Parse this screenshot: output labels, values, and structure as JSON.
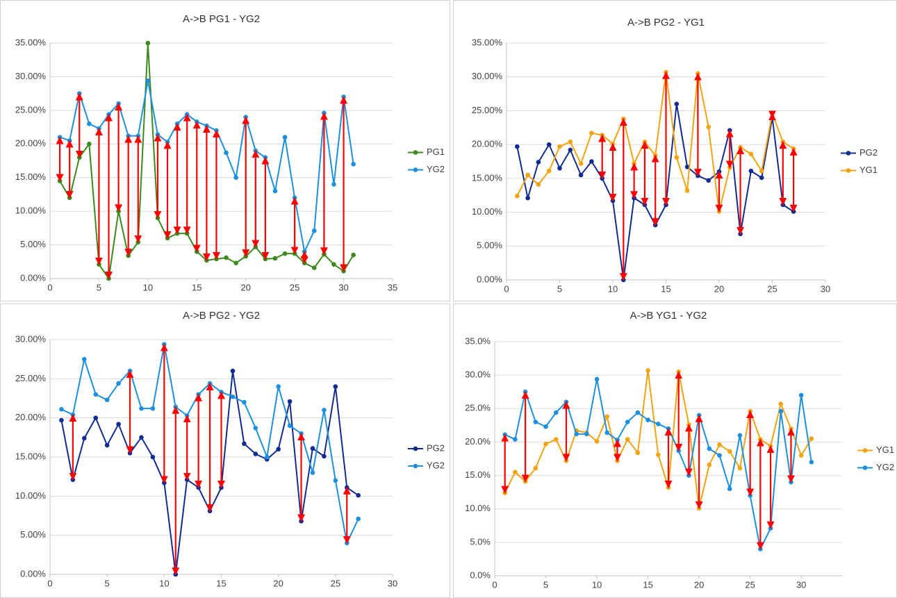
{
  "chart_data": [
    {
      "type": "line",
      "title": "A->B PG1 - YG2",
      "x": [
        1,
        2,
        3,
        4,
        5,
        6,
        7,
        8,
        9,
        10,
        11,
        12,
        13,
        14,
        15,
        16,
        17,
        18,
        19,
        20,
        21,
        22,
        23,
        24,
        25,
        26,
        27,
        28,
        29,
        30,
        31
      ],
      "series": [
        {
          "name": "PG1",
          "color": "#3a8a1c",
          "values": [
            14.5,
            12,
            18,
            20,
            2.1,
            0,
            10,
            3.4,
            5.4,
            35,
            9,
            6,
            6.7,
            6.7,
            4,
            2.7,
            2.9,
            3.1,
            2.3,
            3.3,
            4.7,
            2.9,
            3,
            3.7,
            3.7,
            2.3,
            1.6,
            3.6,
            2.1,
            1.1,
            3.5
          ]
        },
        {
          "name": "YG2",
          "color": "#1b8fe0",
          "values": [
            21,
            20.5,
            27.5,
            23,
            22.3,
            24.4,
            26,
            21.2,
            21.2,
            29.4,
            21.4,
            20.3,
            23,
            24.4,
            23.3,
            22.7,
            22,
            18.7,
            15,
            24,
            19,
            18,
            13,
            21,
            12,
            4,
            7.1,
            24.6,
            14,
            27,
            17
          ]
        }
      ],
      "arrows": {
        "color": "#ff0000",
        "x": [
          1,
          2,
          3,
          5,
          6,
          7,
          8,
          9,
          11,
          12,
          13,
          14,
          15,
          16,
          17,
          20,
          21,
          22,
          25,
          26,
          28,
          30
        ]
      },
      "xlim": [
        0,
        35
      ],
      "xticks": [
        0,
        5,
        10,
        15,
        20,
        25,
        30,
        35
      ],
      "ylim": [
        0,
        35
      ],
      "yticks": [
        {
          "value": 0,
          "label": "0.00%"
        },
        {
          "value": 5,
          "label": "5.00%"
        },
        {
          "value": 10,
          "label": "10.00%"
        },
        {
          "value": 15,
          "label": "15.00%"
        },
        {
          "value": 20,
          "label": "20.00%"
        },
        {
          "value": 25,
          "label": "25.00%"
        },
        {
          "value": 30,
          "label": "30.00%"
        },
        {
          "value": 35,
          "label": "35.00%"
        }
      ],
      "grid": true,
      "legend": "right"
    },
    {
      "type": "line",
      "title": "A->B PG2 - YG1",
      "x": [
        1,
        2,
        3,
        4,
        5,
        6,
        7,
        8,
        9,
        10,
        11,
        12,
        13,
        14,
        15,
        16,
        17,
        18,
        19,
        20,
        21,
        22,
        23,
        24,
        25,
        26,
        27
      ],
      "series": [
        {
          "name": "PG2",
          "color": "#102b94",
          "values": [
            19.7,
            12.1,
            17.4,
            20,
            16.5,
            19.2,
            15.5,
            17.5,
            15,
            11.7,
            0,
            12.1,
            11.1,
            8.1,
            11.1,
            26,
            16.7,
            15.4,
            14.7,
            16,
            22.1,
            6.8,
            16.1,
            15.1,
            24,
            11.1,
            10.1
          ]
        },
        {
          "name": "YG1",
          "color": "#f5a20f",
          "values": [
            12.4,
            15.5,
            14.1,
            16.1,
            19.7,
            20.4,
            17.2,
            21.7,
            21.4,
            20.1,
            23.8,
            17.2,
            20.4,
            18.4,
            30.7,
            18.1,
            13.2,
            30.5,
            22.6,
            10.1,
            16.6,
            19.6,
            18.6,
            16.1,
            24.6,
            20.4,
            19.4
          ]
        }
      ],
      "arrows": {
        "color": "#ff0000",
        "x": [
          9,
          10,
          11,
          12,
          13,
          14,
          15,
          18,
          20,
          21,
          22,
          25,
          26,
          27
        ]
      },
      "xlim": [
        0,
        30
      ],
      "xticks": [
        0,
        5,
        10,
        15,
        20,
        25,
        30
      ],
      "ylim": [
        0,
        35
      ],
      "yticks": [
        {
          "value": 0,
          "label": "0.00%"
        },
        {
          "value": 5,
          "label": "5.00%"
        },
        {
          "value": 10,
          "label": "10.00%"
        },
        {
          "value": 15,
          "label": "15.00%"
        },
        {
          "value": 20,
          "label": "20.00%"
        },
        {
          "value": 25,
          "label": "25.00%"
        },
        {
          "value": 30,
          "label": "30.00%"
        },
        {
          "value": 35,
          "label": "35.00%"
        }
      ],
      "grid": true,
      "legend": "right"
    },
    {
      "type": "line",
      "title": "A->B PG2 - YG2",
      "x": [
        1,
        2,
        3,
        4,
        5,
        6,
        7,
        8,
        9,
        10,
        11,
        12,
        13,
        14,
        15,
        16,
        17,
        18,
        19,
        20,
        21,
        22,
        23,
        24,
        25,
        26,
        27
      ],
      "series": [
        {
          "name": "PG2",
          "color": "#102b94",
          "values": [
            19.7,
            12.1,
            17.4,
            20,
            16.5,
            19.2,
            15.5,
            17.5,
            15,
            11.7,
            0,
            12.1,
            11.1,
            8.1,
            11.1,
            26,
            16.7,
            15.4,
            14.7,
            16,
            22.1,
            6.8,
            16.1,
            15.1,
            24,
            11.1,
            10.1
          ]
        },
        {
          "name": "YG2",
          "color": "#1b8fe0",
          "values": [
            21.1,
            20.4,
            27.5,
            23,
            22.3,
            24.4,
            26,
            21.2,
            21.2,
            29.4,
            21.4,
            20.3,
            23,
            24.4,
            23.3,
            22.7,
            22,
            18.7,
            15,
            24,
            19,
            18,
            13,
            21,
            12,
            4,
            7.1
          ]
        }
      ],
      "arrows": {
        "color": "#ff0000",
        "x": [
          2,
          7,
          10,
          11,
          12,
          13,
          14,
          15,
          22,
          26
        ]
      },
      "xlim": [
        0,
        30
      ],
      "xticks": [
        0,
        5,
        10,
        15,
        20,
        25,
        30
      ],
      "ylim": [
        0,
        30
      ],
      "yticks": [
        {
          "value": 0,
          "label": "0.00%"
        },
        {
          "value": 5,
          "label": "5.00%"
        },
        {
          "value": 10,
          "label": "10.00%"
        },
        {
          "value": 15,
          "label": "15.00%"
        },
        {
          "value": 20,
          "label": "20.00%"
        },
        {
          "value": 25,
          "label": "25.00%"
        },
        {
          "value": 30,
          "label": "30.00%"
        }
      ],
      "grid": true,
      "legend": "right"
    },
    {
      "type": "line",
      "title": "A->B YG1 - YG2",
      "x": [
        1,
        2,
        3,
        4,
        5,
        6,
        7,
        8,
        9,
        10,
        11,
        12,
        13,
        14,
        15,
        16,
        17,
        18,
        19,
        20,
        21,
        22,
        23,
        24,
        25,
        26,
        27,
        28,
        29,
        30,
        31
      ],
      "series": [
        {
          "name": "YG1",
          "color": "#f5a20f",
          "values": [
            12.4,
            15.5,
            14.1,
            16.1,
            19.7,
            20.4,
            17.2,
            21.7,
            21.4,
            20.1,
            23.8,
            17.2,
            20.4,
            18.4,
            30.7,
            18.1,
            13.2,
            30.5,
            22.6,
            10.1,
            16.6,
            19.6,
            18.6,
            16.1,
            24.6,
            20.4,
            19.4,
            25.7,
            22,
            18,
            20.5
          ]
        },
        {
          "name": "YG2",
          "color": "#1b8fe0",
          "values": [
            21.1,
            20.4,
            27.5,
            23,
            22.3,
            24.4,
            26,
            21.2,
            21.2,
            29.4,
            21.4,
            20.3,
            23,
            24.4,
            23.3,
            22.7,
            22,
            18.7,
            15,
            24,
            19,
            18,
            13,
            21,
            12,
            4,
            7.1,
            24.6,
            14,
            27,
            17
          ]
        }
      ],
      "arrows": {
        "color": "#ff0000",
        "x": [
          1,
          3,
          7,
          12,
          17,
          18,
          19,
          20,
          25,
          26,
          27,
          29
        ]
      },
      "xlim": [
        0,
        34
      ],
      "xticks": [
        0,
        5,
        10,
        15,
        20,
        25,
        30
      ],
      "ylim": [
        0,
        35
      ],
      "yticks": [
        {
          "value": 0,
          "label": "0.0%"
        },
        {
          "value": 5,
          "label": "5.0%"
        },
        {
          "value": 10,
          "label": "10.0%"
        },
        {
          "value": 15,
          "label": "15.0%"
        },
        {
          "value": 20,
          "label": "20.0%"
        },
        {
          "value": 25,
          "label": "25.0%"
        },
        {
          "value": 30,
          "label": "30.0%"
        },
        {
          "value": 35,
          "label": "35.0%"
        }
      ],
      "grid": true,
      "legend": "right"
    }
  ]
}
